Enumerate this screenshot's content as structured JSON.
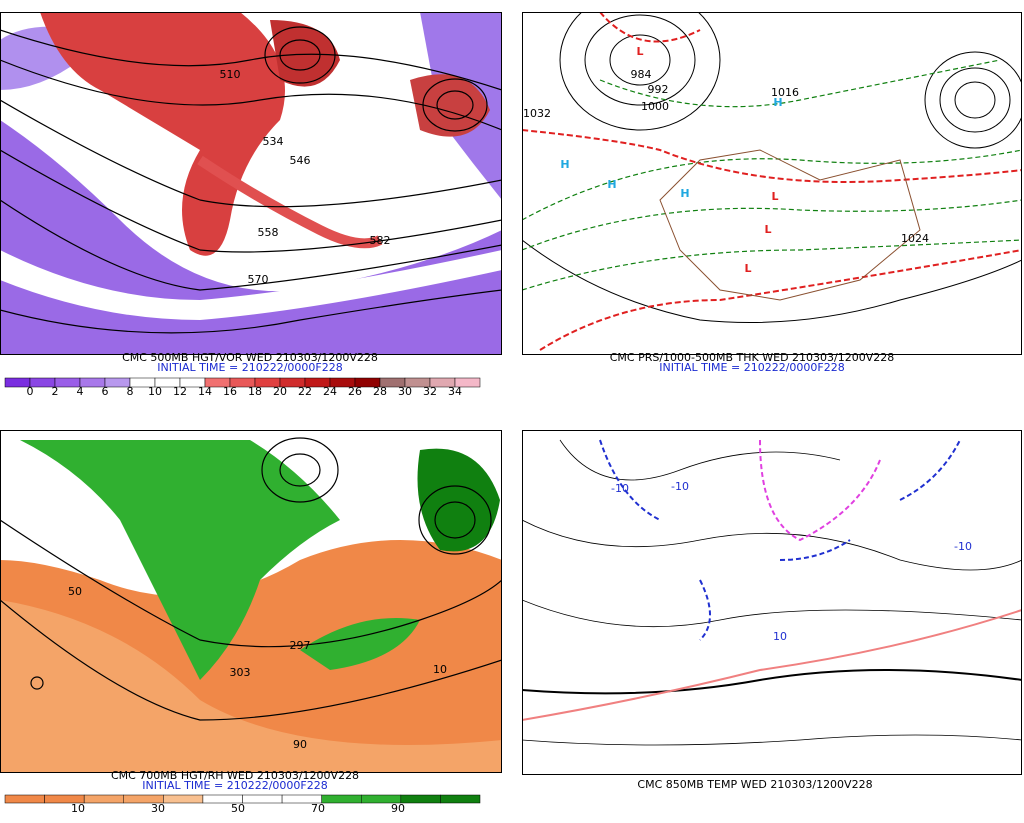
{
  "panels": [
    {
      "caption": "CMC 500MB HGT/VOR WED 210303/1200V228",
      "initial_time": "INITIAL TIME = 210222/0000F228",
      "colorbar": {
        "labels": [
          "0",
          "2",
          "4",
          "6",
          "8",
          "10",
          "12",
          "14",
          "16",
          "18",
          "20",
          "22",
          "24",
          "26",
          "28",
          "30",
          "32",
          "34"
        ],
        "colors": [
          "#7a2ee0",
          "#8a46e4",
          "#9a5ee8",
          "#a878ea",
          "#b898ee",
          "#ffffff",
          "#ffffff",
          "#ffffff",
          "#f07070",
          "#e85858",
          "#e04040",
          "#d02c2c",
          "#c01818",
          "#a80c0c",
          "#900000",
          "#a07070",
          "#c09090",
          "#e0a8b0",
          "#f4b8c8"
        ]
      },
      "map_labels": [
        "510",
        "534",
        "546",
        "558",
        "570",
        "582"
      ]
    },
    {
      "caption": "CMC PRS/1000-500MB THK WED 210303/1200V228",
      "initial_time": "INITIAL TIME = 210222/0000F228",
      "map_labels": [
        "984",
        "992",
        "1000",
        "1016",
        "1024",
        "1032",
        "H",
        "H",
        "H",
        "H",
        "L",
        "L",
        "L",
        "L"
      ]
    },
    {
      "caption": "CMC 700MB HGT/RH WED 210303/1200V228",
      "initial_time": "INITIAL TIME = 210222/0000F228",
      "colorbar": {
        "labels": [
          "10",
          "30",
          "50",
          "70",
          "90"
        ],
        "colors": [
          "#f08848",
          "#f08848",
          "#f4a468",
          "#f4a468",
          "#f8c090",
          "#ffffff",
          "#ffffff",
          "#ffffff",
          "#30b030",
          "#30b030",
          "#108010",
          "#108010"
        ]
      },
      "map_labels": [
        "297",
        "303",
        "50",
        "10",
        "90"
      ]
    },
    {
      "caption": "CMC 850MB TEMP WED 210303/1200V228",
      "map_labels": [
        "-10",
        "-10",
        "10",
        "-10"
      ]
    }
  ]
}
